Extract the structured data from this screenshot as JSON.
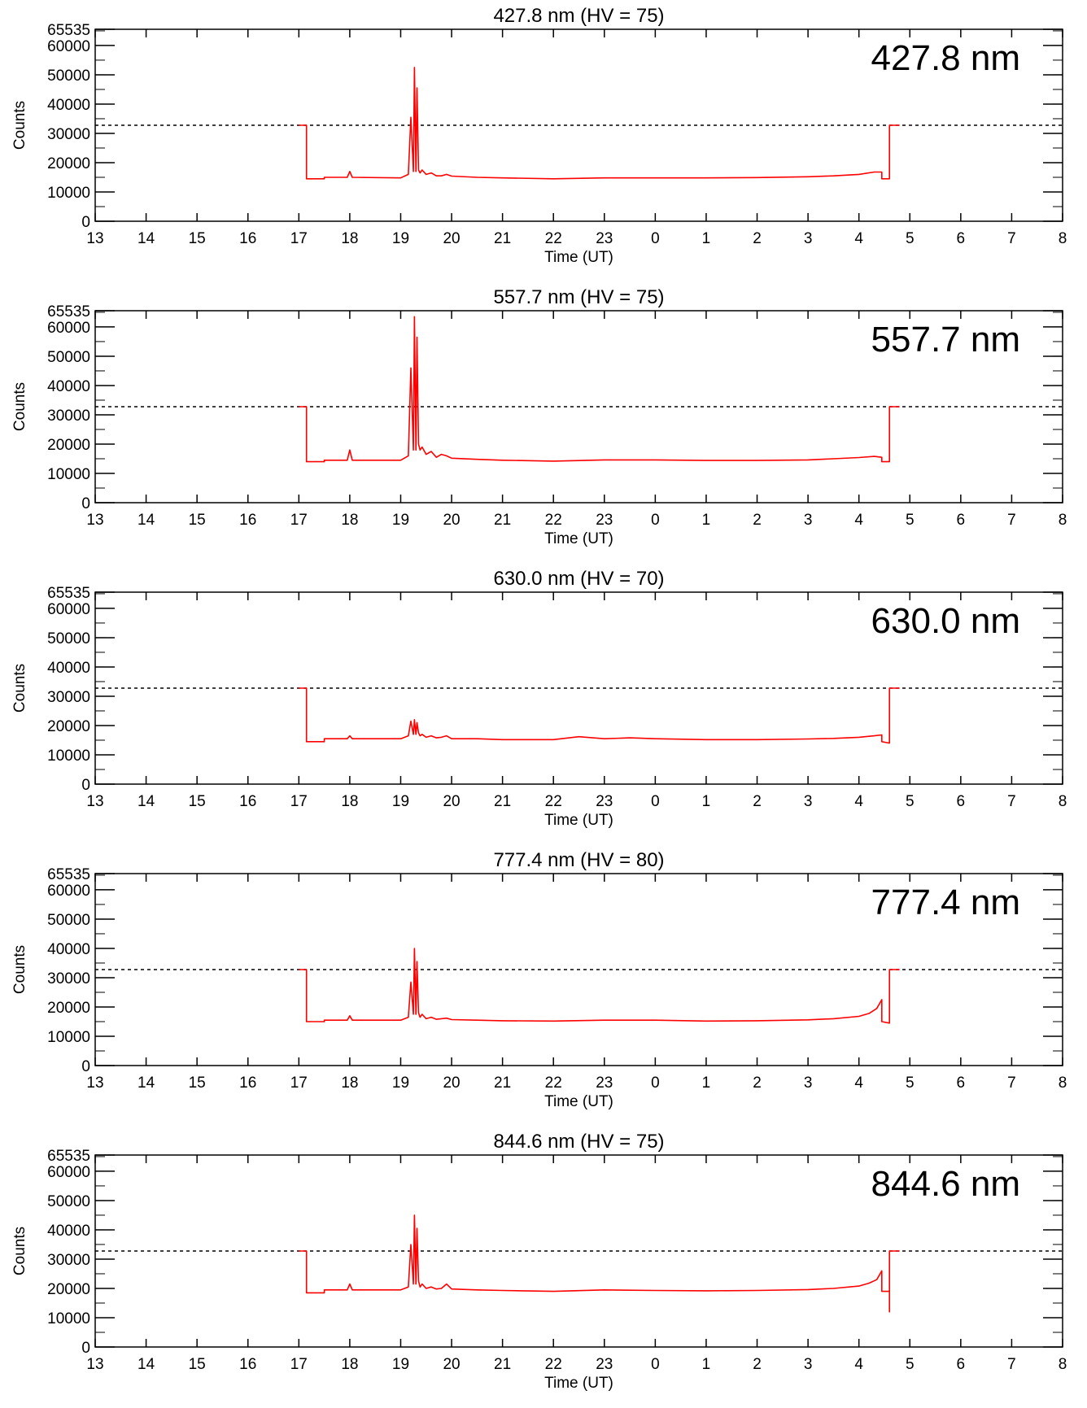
{
  "colors": {
    "data": "#ff0000",
    "axes": "#000000",
    "threshold": "#000000",
    "background": "#ffffff"
  },
  "chart_data": [
    {
      "type": "line",
      "title": "427.8 nm (HV = 75)",
      "label": "427.8 nm",
      "xlabel": "Time (UT)",
      "ylabel": "Counts",
      "x_ticks": [
        "13",
        "14",
        "15",
        "16",
        "17",
        "18",
        "19",
        "20",
        "21",
        "22",
        "23",
        "0",
        "1",
        "2",
        "3",
        "4",
        "5",
        "6",
        "7",
        "8"
      ],
      "y_ticks": [
        0,
        10000,
        20000,
        30000,
        40000,
        50000,
        60000,
        65535
      ],
      "xlim": [
        13,
        32
      ],
      "ylim": [
        0,
        65535
      ],
      "threshold": 32768,
      "grid": false,
      "series": [
        {
          "x": [
            17.0,
            17.15,
            17.15,
            17.5,
            17.5,
            17.95,
            18.0,
            18.05,
            19.0,
            19.15,
            19.2,
            19.25,
            19.27,
            19.3,
            19.32,
            19.35,
            19.38,
            19.42,
            19.5,
            19.6,
            19.7,
            19.8,
            19.9,
            20.0,
            20.5,
            21.0,
            22.0,
            23.0,
            24.0,
            25.0,
            26.0,
            27.0,
            27.5,
            28.0,
            28.3,
            28.45,
            28.45,
            28.6,
            28.6,
            28.8
          ],
          "y": [
            32768,
            32768,
            14500,
            14500,
            15000,
            15000,
            17000,
            15000,
            14800,
            16000,
            35500,
            17000,
            52500,
            17000,
            45500,
            17500,
            16500,
            17500,
            16000,
            16500,
            15500,
            15500,
            16000,
            15400,
            15000,
            14800,
            14500,
            14800,
            14800,
            14800,
            14900,
            15200,
            15500,
            16000,
            16800,
            16800,
            14500,
            14500,
            32768,
            32768
          ]
        }
      ]
    },
    {
      "type": "line",
      "title": "557.7 nm (HV = 75)",
      "label": "557.7 nm",
      "xlabel": "Time (UT)",
      "ylabel": "Counts",
      "x_ticks": [
        "13",
        "14",
        "15",
        "16",
        "17",
        "18",
        "19",
        "20",
        "21",
        "22",
        "23",
        "0",
        "1",
        "2",
        "3",
        "4",
        "5",
        "6",
        "7",
        "8"
      ],
      "y_ticks": [
        0,
        10000,
        20000,
        30000,
        40000,
        50000,
        60000,
        65535
      ],
      "xlim": [
        13,
        32
      ],
      "ylim": [
        0,
        65535
      ],
      "threshold": 32768,
      "grid": false,
      "series": [
        {
          "x": [
            17.0,
            17.15,
            17.15,
            17.5,
            17.5,
            17.95,
            18.0,
            18.05,
            19.0,
            19.15,
            19.2,
            19.25,
            19.27,
            19.3,
            19.32,
            19.35,
            19.38,
            19.42,
            19.5,
            19.6,
            19.7,
            19.8,
            19.9,
            20.0,
            20.5,
            21.0,
            22.0,
            23.0,
            24.0,
            25.0,
            26.0,
            27.0,
            27.5,
            28.0,
            28.3,
            28.45,
            28.45,
            28.6,
            28.6,
            28.8
          ],
          "y": [
            32768,
            32768,
            14000,
            14000,
            14500,
            14500,
            18000,
            14500,
            14500,
            16000,
            46000,
            18000,
            63500,
            18000,
            56500,
            20000,
            18000,
            19000,
            16500,
            17500,
            15500,
            16500,
            16000,
            15200,
            14800,
            14500,
            14200,
            14600,
            14600,
            14400,
            14400,
            14600,
            15000,
            15400,
            15800,
            15500,
            14000,
            14000,
            32768,
            32768
          ]
        }
      ]
    },
    {
      "type": "line",
      "title": "630.0 nm (HV = 70)",
      "label": "630.0 nm",
      "xlabel": "Time (UT)",
      "ylabel": "Counts",
      "x_ticks": [
        "13",
        "14",
        "15",
        "16",
        "17",
        "18",
        "19",
        "20",
        "21",
        "22",
        "23",
        "0",
        "1",
        "2",
        "3",
        "4",
        "5",
        "6",
        "7",
        "8"
      ],
      "y_ticks": [
        0,
        10000,
        20000,
        30000,
        40000,
        50000,
        60000,
        65535
      ],
      "xlim": [
        13,
        32
      ],
      "ylim": [
        0,
        65535
      ],
      "threshold": 32768,
      "grid": false,
      "series": [
        {
          "x": [
            17.0,
            17.15,
            17.15,
            17.5,
            17.5,
            17.95,
            18.0,
            18.05,
            19.0,
            19.15,
            19.2,
            19.25,
            19.27,
            19.3,
            19.32,
            19.35,
            19.38,
            19.42,
            19.5,
            19.6,
            19.7,
            19.8,
            19.9,
            20.0,
            20.5,
            21.0,
            22.0,
            22.5,
            23.0,
            23.5,
            24.0,
            25.0,
            26.0,
            27.0,
            27.5,
            28.0,
            28.3,
            28.45,
            28.45,
            28.6,
            28.6,
            28.8
          ],
          "y": [
            32768,
            32768,
            14500,
            14500,
            15500,
            15500,
            16500,
            15500,
            15500,
            16500,
            21500,
            17000,
            22000,
            17000,
            21000,
            17500,
            16500,
            17000,
            16000,
            16500,
            15800,
            16000,
            16500,
            15500,
            15500,
            15200,
            15200,
            16200,
            15500,
            15800,
            15500,
            15200,
            15200,
            15400,
            15600,
            16000,
            16500,
            16800,
            14500,
            14000,
            32768,
            32768
          ]
        }
      ]
    },
    {
      "type": "line",
      "title": "777.4 nm (HV = 80)",
      "label": "777.4 nm",
      "xlabel": "Time (UT)",
      "ylabel": "Counts",
      "x_ticks": [
        "13",
        "14",
        "15",
        "16",
        "17",
        "18",
        "19",
        "20",
        "21",
        "22",
        "23",
        "0",
        "1",
        "2",
        "3",
        "4",
        "5",
        "6",
        "7",
        "8"
      ],
      "y_ticks": [
        0,
        10000,
        20000,
        30000,
        40000,
        50000,
        60000,
        65535
      ],
      "xlim": [
        13,
        32
      ],
      "ylim": [
        0,
        65535
      ],
      "threshold": 32768,
      "grid": false,
      "series": [
        {
          "x": [
            17.0,
            17.15,
            17.15,
            17.5,
            17.5,
            17.95,
            18.0,
            18.05,
            19.0,
            19.15,
            19.2,
            19.25,
            19.27,
            19.3,
            19.32,
            19.35,
            19.38,
            19.42,
            19.5,
            19.6,
            19.7,
            19.8,
            19.9,
            20.0,
            20.5,
            21.0,
            22.0,
            23.0,
            24.0,
            25.0,
            26.0,
            27.0,
            27.5,
            28.0,
            28.2,
            28.35,
            28.45,
            28.45,
            28.6,
            28.6,
            28.8
          ],
          "y": [
            32768,
            32768,
            15000,
            15000,
            15500,
            15500,
            17000,
            15500,
            15500,
            16500,
            28500,
            17500,
            40000,
            17500,
            35500,
            18000,
            16500,
            17500,
            16000,
            16500,
            15800,
            16000,
            16200,
            15700,
            15500,
            15300,
            15200,
            15500,
            15500,
            15200,
            15300,
            15600,
            16000,
            16800,
            17800,
            19500,
            22500,
            15000,
            14500,
            32768,
            32768
          ]
        }
      ]
    },
    {
      "type": "line",
      "title": "844.6 nm (HV = 75)",
      "label": "844.6 nm",
      "xlabel": "Time (UT)",
      "ylabel": "Counts",
      "x_ticks": [
        "13",
        "14",
        "15",
        "16",
        "17",
        "18",
        "19",
        "20",
        "21",
        "22",
        "23",
        "0",
        "1",
        "2",
        "3",
        "4",
        "5",
        "6",
        "7",
        "8"
      ],
      "y_ticks": [
        0,
        10000,
        20000,
        30000,
        40000,
        50000,
        60000,
        65535
      ],
      "xlim": [
        13,
        32
      ],
      "ylim": [
        0,
        65535
      ],
      "threshold": 32768,
      "grid": false,
      "series": [
        {
          "x": [
            17.0,
            17.15,
            17.15,
            17.5,
            17.5,
            17.95,
            18.0,
            18.05,
            19.0,
            19.15,
            19.2,
            19.25,
            19.27,
            19.3,
            19.32,
            19.35,
            19.38,
            19.42,
            19.5,
            19.6,
            19.7,
            19.8,
            19.9,
            20.0,
            20.5,
            21.0,
            22.0,
            23.0,
            24.0,
            25.0,
            26.0,
            27.0,
            27.5,
            28.0,
            28.2,
            28.35,
            28.45,
            28.45,
            28.6,
            28.6,
            28.6,
            28.8
          ],
          "y": [
            32768,
            32768,
            18500,
            18500,
            19500,
            19500,
            21500,
            19500,
            19500,
            20500,
            35000,
            21500,
            45000,
            21500,
            40500,
            22500,
            20500,
            21500,
            20000,
            20500,
            19800,
            20000,
            21500,
            19800,
            19500,
            19300,
            19000,
            19500,
            19300,
            19200,
            19300,
            19600,
            20000,
            20800,
            21800,
            23000,
            26000,
            19000,
            19000,
            12000,
            32768,
            32768
          ]
        }
      ]
    }
  ]
}
